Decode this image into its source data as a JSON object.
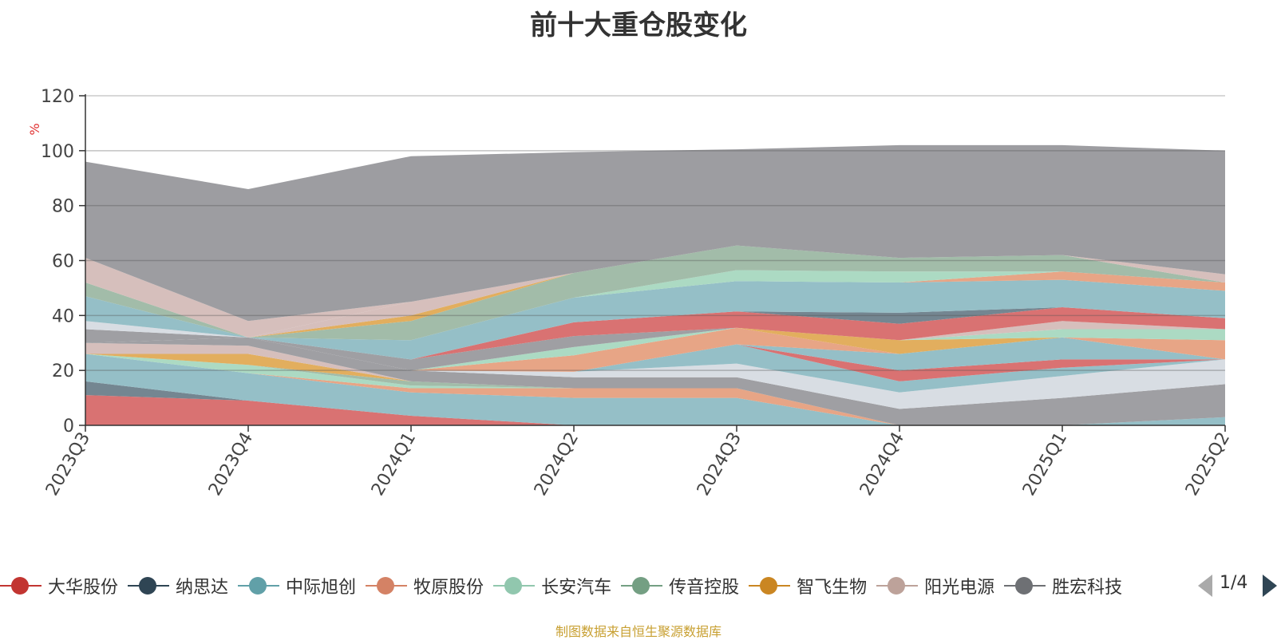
{
  "title": "前十大重仓股变化",
  "footer": "制图数据来自恒生聚源数据库",
  "legend_page": "1/4",
  "chart_data": {
    "type": "area",
    "stacked": true,
    "ylabel": "%",
    "ylim": [
      0,
      120
    ],
    "yticks": [
      0,
      20,
      40,
      60,
      80,
      100,
      120
    ],
    "grid": true,
    "categories": [
      "2023Q3",
      "2023Q4",
      "2024Q1",
      "2024Q2",
      "2024Q3",
      "2024Q4",
      "2025Q1",
      "2025Q2"
    ],
    "series": [
      {
        "name": "大华股份",
        "color": "#d76a6a",
        "values": [
          11,
          9,
          3.5,
          0,
          0,
          0,
          0,
          0
        ]
      },
      {
        "name": "纳思达",
        "color": "#6d7f8b",
        "values": [
          5,
          0,
          0,
          0,
          0,
          0,
          0,
          0
        ]
      },
      {
        "name": "中际旭创",
        "color": "#8fbcc4",
        "values": [
          10,
          10,
          8.5,
          10,
          10,
          0,
          0,
          3
        ]
      },
      {
        "name": "牧原股份",
        "color": "#e6a080",
        "values": [
          0,
          0,
          1.5,
          3.5,
          3.5,
          0,
          0,
          0
        ]
      },
      {
        "name": "长安汽车",
        "color": "#a8d8c0",
        "values": [
          0,
          3,
          1,
          0,
          0,
          0,
          0,
          0
        ]
      },
      {
        "name": "传音控股",
        "color": "#9db8a4",
        "values": [
          0,
          0,
          1.5,
          0,
          0,
          0,
          0,
          0
        ]
      },
      {
        "name": "智飞生物",
        "color": "#e0aa55",
        "values": [
          0,
          4,
          0,
          0,
          0,
          0,
          0,
          0
        ]
      },
      {
        "name": "阳光电源",
        "color": "#d4bcb8",
        "values": [
          4,
          3,
          0,
          0,
          0,
          0,
          0,
          0
        ]
      },
      {
        "name": "胜宏科技",
        "color": "#9a9a9e",
        "values": [
          0,
          3,
          4,
          4,
          4,
          6,
          10,
          12
        ]
      },
      {
        "name": "",
        "color": "#d6dbe2",
        "values": [
          0,
          0,
          0,
          2,
          5,
          6,
          8,
          9
        ]
      },
      {
        "name": "",
        "color": "#8fbcc4",
        "values": [
          0,
          0,
          0,
          0,
          7,
          4,
          3,
          0
        ]
      },
      {
        "name": "",
        "color": "#d76a6a",
        "values": [
          0,
          0,
          0,
          0,
          0,
          4,
          3,
          0
        ]
      },
      {
        "name": "",
        "color": "#8fbcc4",
        "values": [
          0,
          0,
          0,
          0,
          0,
          6,
          8,
          0
        ]
      },
      {
        "name": "",
        "color": "#e6a080",
        "values": [
          0,
          0,
          0,
          6,
          6,
          0,
          0,
          7
        ]
      },
      {
        "name": "",
        "color": "#e0aa55",
        "values": [
          0,
          0,
          0,
          0,
          0,
          5,
          0,
          0
        ]
      },
      {
        "name": "",
        "color": "#a8d8c0",
        "values": [
          0,
          0,
          0,
          3,
          0,
          0,
          3,
          4
        ]
      },
      {
        "name": "",
        "color": "#d4bcb8",
        "values": [
          0,
          0,
          0,
          0,
          0,
          0,
          3,
          0
        ]
      },
      {
        "name": "",
        "color": "#9a9a9e",
        "values": [
          0,
          0,
          4,
          4,
          0,
          0,
          0,
          0
        ]
      },
      {
        "name": "",
        "color": "#d76a6a",
        "values": [
          0,
          0,
          0,
          5,
          6,
          6,
          5,
          4
        ]
      },
      {
        "name": "",
        "color": "#6d7f8b",
        "values": [
          0,
          0,
          0,
          0,
          0,
          4,
          0,
          0
        ]
      },
      {
        "name": "",
        "color": "#8fbcc4",
        "values": [
          0,
          0,
          7,
          9,
          11,
          11,
          10,
          10
        ]
      },
      {
        "name": "",
        "color": "#e6a080",
        "values": [
          0,
          0,
          0,
          0,
          0,
          0,
          3,
          3
        ]
      },
      {
        "name": "",
        "color": "#a8d8c0",
        "values": [
          0,
          0,
          0,
          0,
          4,
          4,
          0,
          0
        ]
      },
      {
        "name": "",
        "color": "#9db8a4",
        "values": [
          0,
          0,
          7,
          9,
          9,
          5,
          6,
          0
        ]
      },
      {
        "name": "",
        "color": "#e0aa55",
        "values": [
          0,
          0,
          2,
          0,
          0,
          0,
          0,
          0
        ]
      },
      {
        "name": "",
        "color": "#d4bcb8",
        "values": [
          0,
          0,
          5,
          0,
          0,
          0,
          0,
          3
        ]
      },
      {
        "name": "",
        "color": "#9a9a9e",
        "values": [
          5,
          0,
          0,
          0,
          0,
          0,
          0,
          0
        ]
      },
      {
        "name": "",
        "color": "#d6dbe2",
        "values": [
          3,
          0,
          0,
          0,
          0,
          0,
          0,
          0
        ]
      },
      {
        "name": "",
        "color": "#8fbcc4",
        "values": [
          9,
          0,
          0,
          0,
          0,
          0,
          0,
          0
        ]
      },
      {
        "name": "",
        "color": "#9db8a4",
        "values": [
          5,
          0,
          0,
          0,
          0,
          0,
          0,
          0
        ]
      },
      {
        "name": "",
        "color": "#d4bcb8",
        "values": [
          9,
          6,
          0,
          0,
          0,
          0,
          0,
          0
        ]
      },
      {
        "name": "",
        "color": "#9db8a4",
        "values": [
          0,
          0,
          0,
          0,
          0,
          0,
          0,
          0
        ]
      },
      {
        "name": "",
        "color": "#98989c",
        "values": [
          35,
          48,
          53,
          44,
          35,
          41,
          40,
          45
        ]
      }
    ]
  }
}
